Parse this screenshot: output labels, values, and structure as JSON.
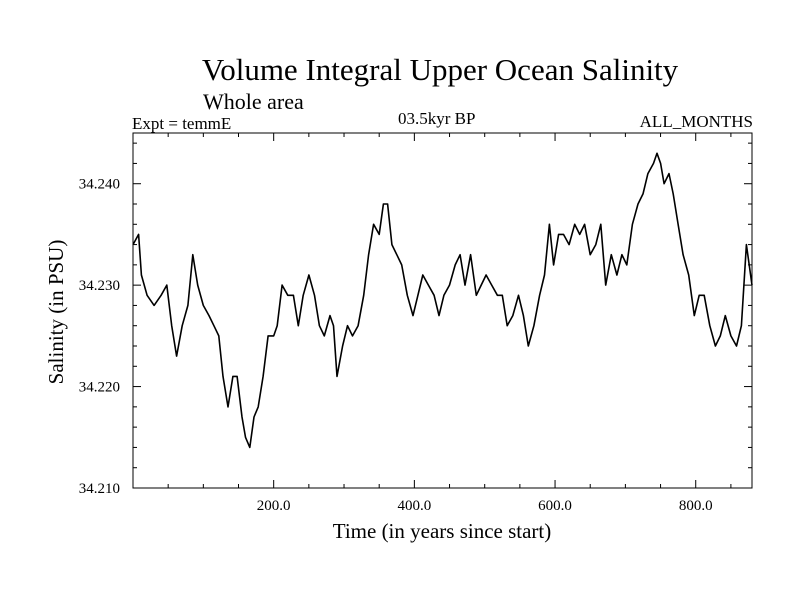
{
  "chart_data": {
    "type": "line",
    "title": "Volume Integral Upper Ocean Salinity",
    "subtitle": "Whole area",
    "left_label": "Expt = temmE",
    "center_label": "03.5kyr BP",
    "right_label": "ALL_MONTHS",
    "xlabel": "Time (in years since start)",
    "ylabel": "Salinity (in PSU)",
    "xlim": [
      0,
      880
    ],
    "ylim": [
      34.21,
      34.245
    ],
    "x_ticks": [
      200,
      400,
      600,
      800
    ],
    "x_tick_labels": [
      "200.0",
      "400.0",
      "600.0",
      "800.0"
    ],
    "y_ticks": [
      34.21,
      34.22,
      34.23,
      34.24
    ],
    "y_tick_labels": [
      "34.210",
      "34.220",
      "34.230",
      "34.240"
    ],
    "series": [
      {
        "name": "salinity",
        "x": [
          0,
          8,
          12,
          20,
          30,
          40,
          48,
          55,
          62,
          70,
          78,
          85,
          92,
          100,
          108,
          115,
          122,
          128,
          135,
          142,
          148,
          155,
          160,
          166,
          172,
          178,
          185,
          192,
          200,
          205,
          212,
          220,
          228,
          235,
          242,
          250,
          258,
          265,
          272,
          280,
          285,
          290,
          298,
          305,
          312,
          320,
          328,
          335,
          342,
          350,
          356,
          362,
          368,
          375,
          382,
          390,
          398,
          405,
          412,
          420,
          428,
          435,
          442,
          450,
          458,
          465,
          472,
          480,
          488,
          495,
          502,
          510,
          518,
          525,
          532,
          540,
          548,
          555,
          562,
          570,
          578,
          585,
          592,
          598,
          605,
          612,
          620,
          628,
          635,
          642,
          650,
          658,
          665,
          672,
          680,
          688,
          695,
          702,
          710,
          718,
          725,
          732,
          740,
          745,
          750,
          755,
          762,
          768,
          775,
          782,
          790,
          798,
          805,
          812,
          820,
          828,
          835,
          842,
          850,
          858,
          865,
          872,
          880
        ],
        "values": [
          34.234,
          34.235,
          34.231,
          34.229,
          34.228,
          34.229,
          34.23,
          34.226,
          34.223,
          34.226,
          34.228,
          34.233,
          34.23,
          34.228,
          34.227,
          34.226,
          34.225,
          34.221,
          34.218,
          34.221,
          34.221,
          34.217,
          34.215,
          34.214,
          34.217,
          34.218,
          34.221,
          34.225,
          34.225,
          34.226,
          34.23,
          34.229,
          34.229,
          34.226,
          34.229,
          34.231,
          34.229,
          34.226,
          34.225,
          34.227,
          34.226,
          34.221,
          34.224,
          34.226,
          34.225,
          34.226,
          34.229,
          34.233,
          34.236,
          34.235,
          34.238,
          34.238,
          34.234,
          34.233,
          34.232,
          34.229,
          34.227,
          34.229,
          34.231,
          34.23,
          34.229,
          34.227,
          34.229,
          34.23,
          34.232,
          34.233,
          34.23,
          34.233,
          34.229,
          34.23,
          34.231,
          34.23,
          34.229,
          34.229,
          34.226,
          34.227,
          34.229,
          34.227,
          34.224,
          34.226,
          34.229,
          34.231,
          34.236,
          34.232,
          34.235,
          34.235,
          34.234,
          34.236,
          34.235,
          34.236,
          34.233,
          34.234,
          34.236,
          34.23,
          34.233,
          34.231,
          34.233,
          34.232,
          34.236,
          34.238,
          34.239,
          34.241,
          34.242,
          34.243,
          34.242,
          34.24,
          34.241,
          34.239,
          34.236,
          34.233,
          34.231,
          34.227,
          34.229,
          34.229,
          34.226,
          34.224,
          34.225,
          34.227,
          34.225,
          34.224,
          34.226,
          34.234,
          34.23
        ]
      }
    ]
  }
}
